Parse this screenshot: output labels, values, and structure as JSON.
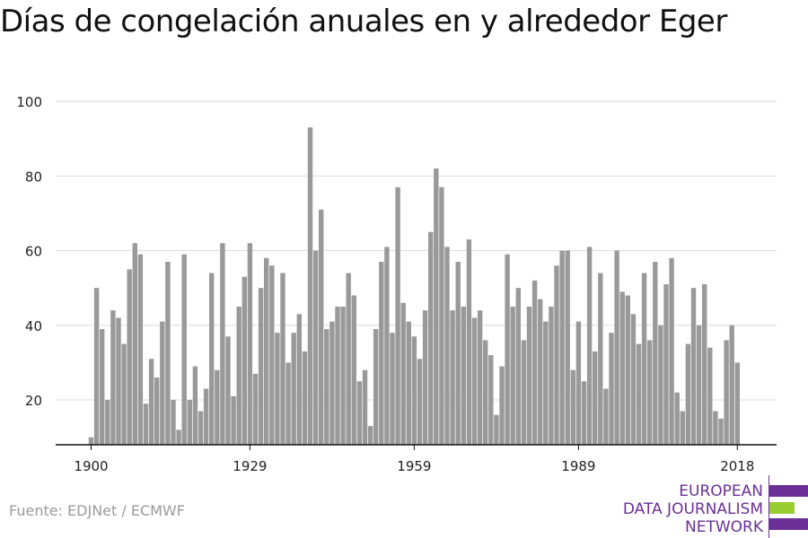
{
  "title": "Días de congelación anuales en y alrededor Eger",
  "source": "Fuente: EDJNet / ECMWF",
  "logo": {
    "lines": [
      "EUROPEAN",
      "DATA JOURNALISM",
      "NETWORK"
    ]
  },
  "colors": {
    "bar": "#999999",
    "grid": "#dddddd",
    "axis": "#111111",
    "logo_purple": "#6a3096",
    "logo_green": "#9acd32"
  },
  "chart_data": {
    "type": "bar",
    "title": "Días de congelación anuales en y alrededor Eger",
    "xlabel": "",
    "ylabel": "",
    "x_start": 1900,
    "x_end": 2018,
    "xticks": [
      1900,
      1929,
      1959,
      1989,
      2018
    ],
    "yticks": [
      20,
      40,
      60,
      80,
      100
    ],
    "ylim": [
      8,
      100
    ],
    "grid": true,
    "values": [
      10,
      50,
      39,
      20,
      44,
      42,
      35,
      55,
      62,
      59,
      19,
      31,
      26,
      41,
      57,
      20,
      12,
      59,
      20,
      29,
      17,
      23,
      54,
      28,
      62,
      37,
      21,
      45,
      53,
      62,
      27,
      50,
      58,
      56,
      38,
      54,
      30,
      38,
      43,
      33,
      93,
      60,
      71,
      39,
      41,
      45,
      45,
      54,
      48,
      25,
      28,
      13,
      39,
      57,
      61,
      38,
      77,
      46,
      41,
      37,
      31,
      44,
      65,
      82,
      77,
      61,
      44,
      57,
      45,
      63,
      42,
      44,
      36,
      32,
      16,
      29,
      59,
      45,
      50,
      36,
      45,
      52,
      47,
      41,
      45,
      56,
      60,
      60,
      28,
      41,
      25,
      61,
      33,
      54,
      23,
      38,
      60,
      49,
      48,
      43,
      35,
      54,
      36,
      57,
      40,
      51,
      58,
      22,
      17,
      35,
      50,
      40,
      51,
      34,
      17,
      15,
      36,
      40,
      30
    ]
  }
}
